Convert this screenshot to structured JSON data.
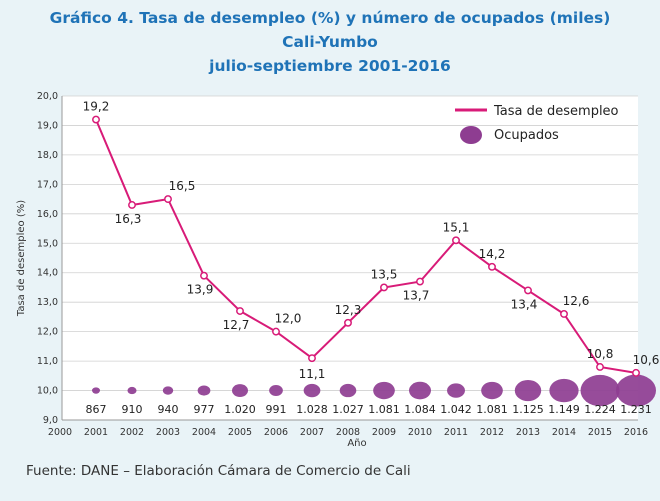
{
  "title_lines": [
    "Gráfico 4. Tasa de desempleo (%) y número de ocupados (miles)",
    "Cali-Yumbo",
    "julio-septiembre 2001-2016"
  ],
  "source": "Fuente: DANE – Elaboración Cámara de Comercio de Cali",
  "colors": {
    "line": "#d81b78",
    "bubble": "#8e3d91",
    "title": "#1f73b7"
  },
  "chart_data": {
    "type": "line",
    "xlabel": "Año",
    "ylabel": "Tasa de desempleo (%)",
    "ylim": [
      9.0,
      20.0
    ],
    "xlim": [
      2000,
      2016
    ],
    "x_ticks": [
      "2000",
      "2001",
      "2002",
      "2003",
      "2004",
      "2005",
      "2006",
      "2007",
      "2008",
      "2009",
      "2010",
      "2011",
      "2012",
      "2013",
      "2014",
      "2015",
      "2016"
    ],
    "y_ticks": [
      "9,0",
      "10,0",
      "11,0",
      "12,0",
      "13,0",
      "14,0",
      "15,0",
      "16,0",
      "17,0",
      "18,0",
      "19,0",
      "20,0"
    ],
    "grid": true,
    "legend_position": "top-right",
    "x": [
      2001,
      2002,
      2003,
      2004,
      2005,
      2006,
      2007,
      2008,
      2009,
      2010,
      2011,
      2012,
      2013,
      2014,
      2015,
      2016
    ],
    "series": [
      {
        "name": "Tasa de desempleo",
        "values": [
          19.2,
          16.3,
          16.5,
          13.9,
          12.7,
          12.0,
          11.1,
          12.3,
          13.5,
          13.7,
          15.1,
          14.2,
          13.4,
          12.6,
          10.8,
          10.6
        ],
        "labels": [
          "19,2",
          "16,3",
          "16,5",
          "13,9",
          "12,7",
          "12,0",
          "11,1",
          "12,3",
          "13,5",
          "13,7",
          "15,1",
          "14,2",
          "13,4",
          "12,6",
          "10,8",
          "10,6"
        ]
      },
      {
        "name": "Ocupados",
        "values": [
          867,
          910,
          940,
          977,
          1020,
          991,
          1028,
          1027,
          1081,
          1084,
          1042,
          1081,
          1125,
          1149,
          1224,
          1231
        ],
        "labels": [
          "867",
          "910",
          "940",
          "977",
          "1.020",
          "991",
          "1.028",
          "1.027",
          "1.081",
          "1.084",
          "1.042",
          "1.081",
          "1.125",
          "1.149",
          "1.224",
          "1.231"
        ]
      }
    ]
  }
}
